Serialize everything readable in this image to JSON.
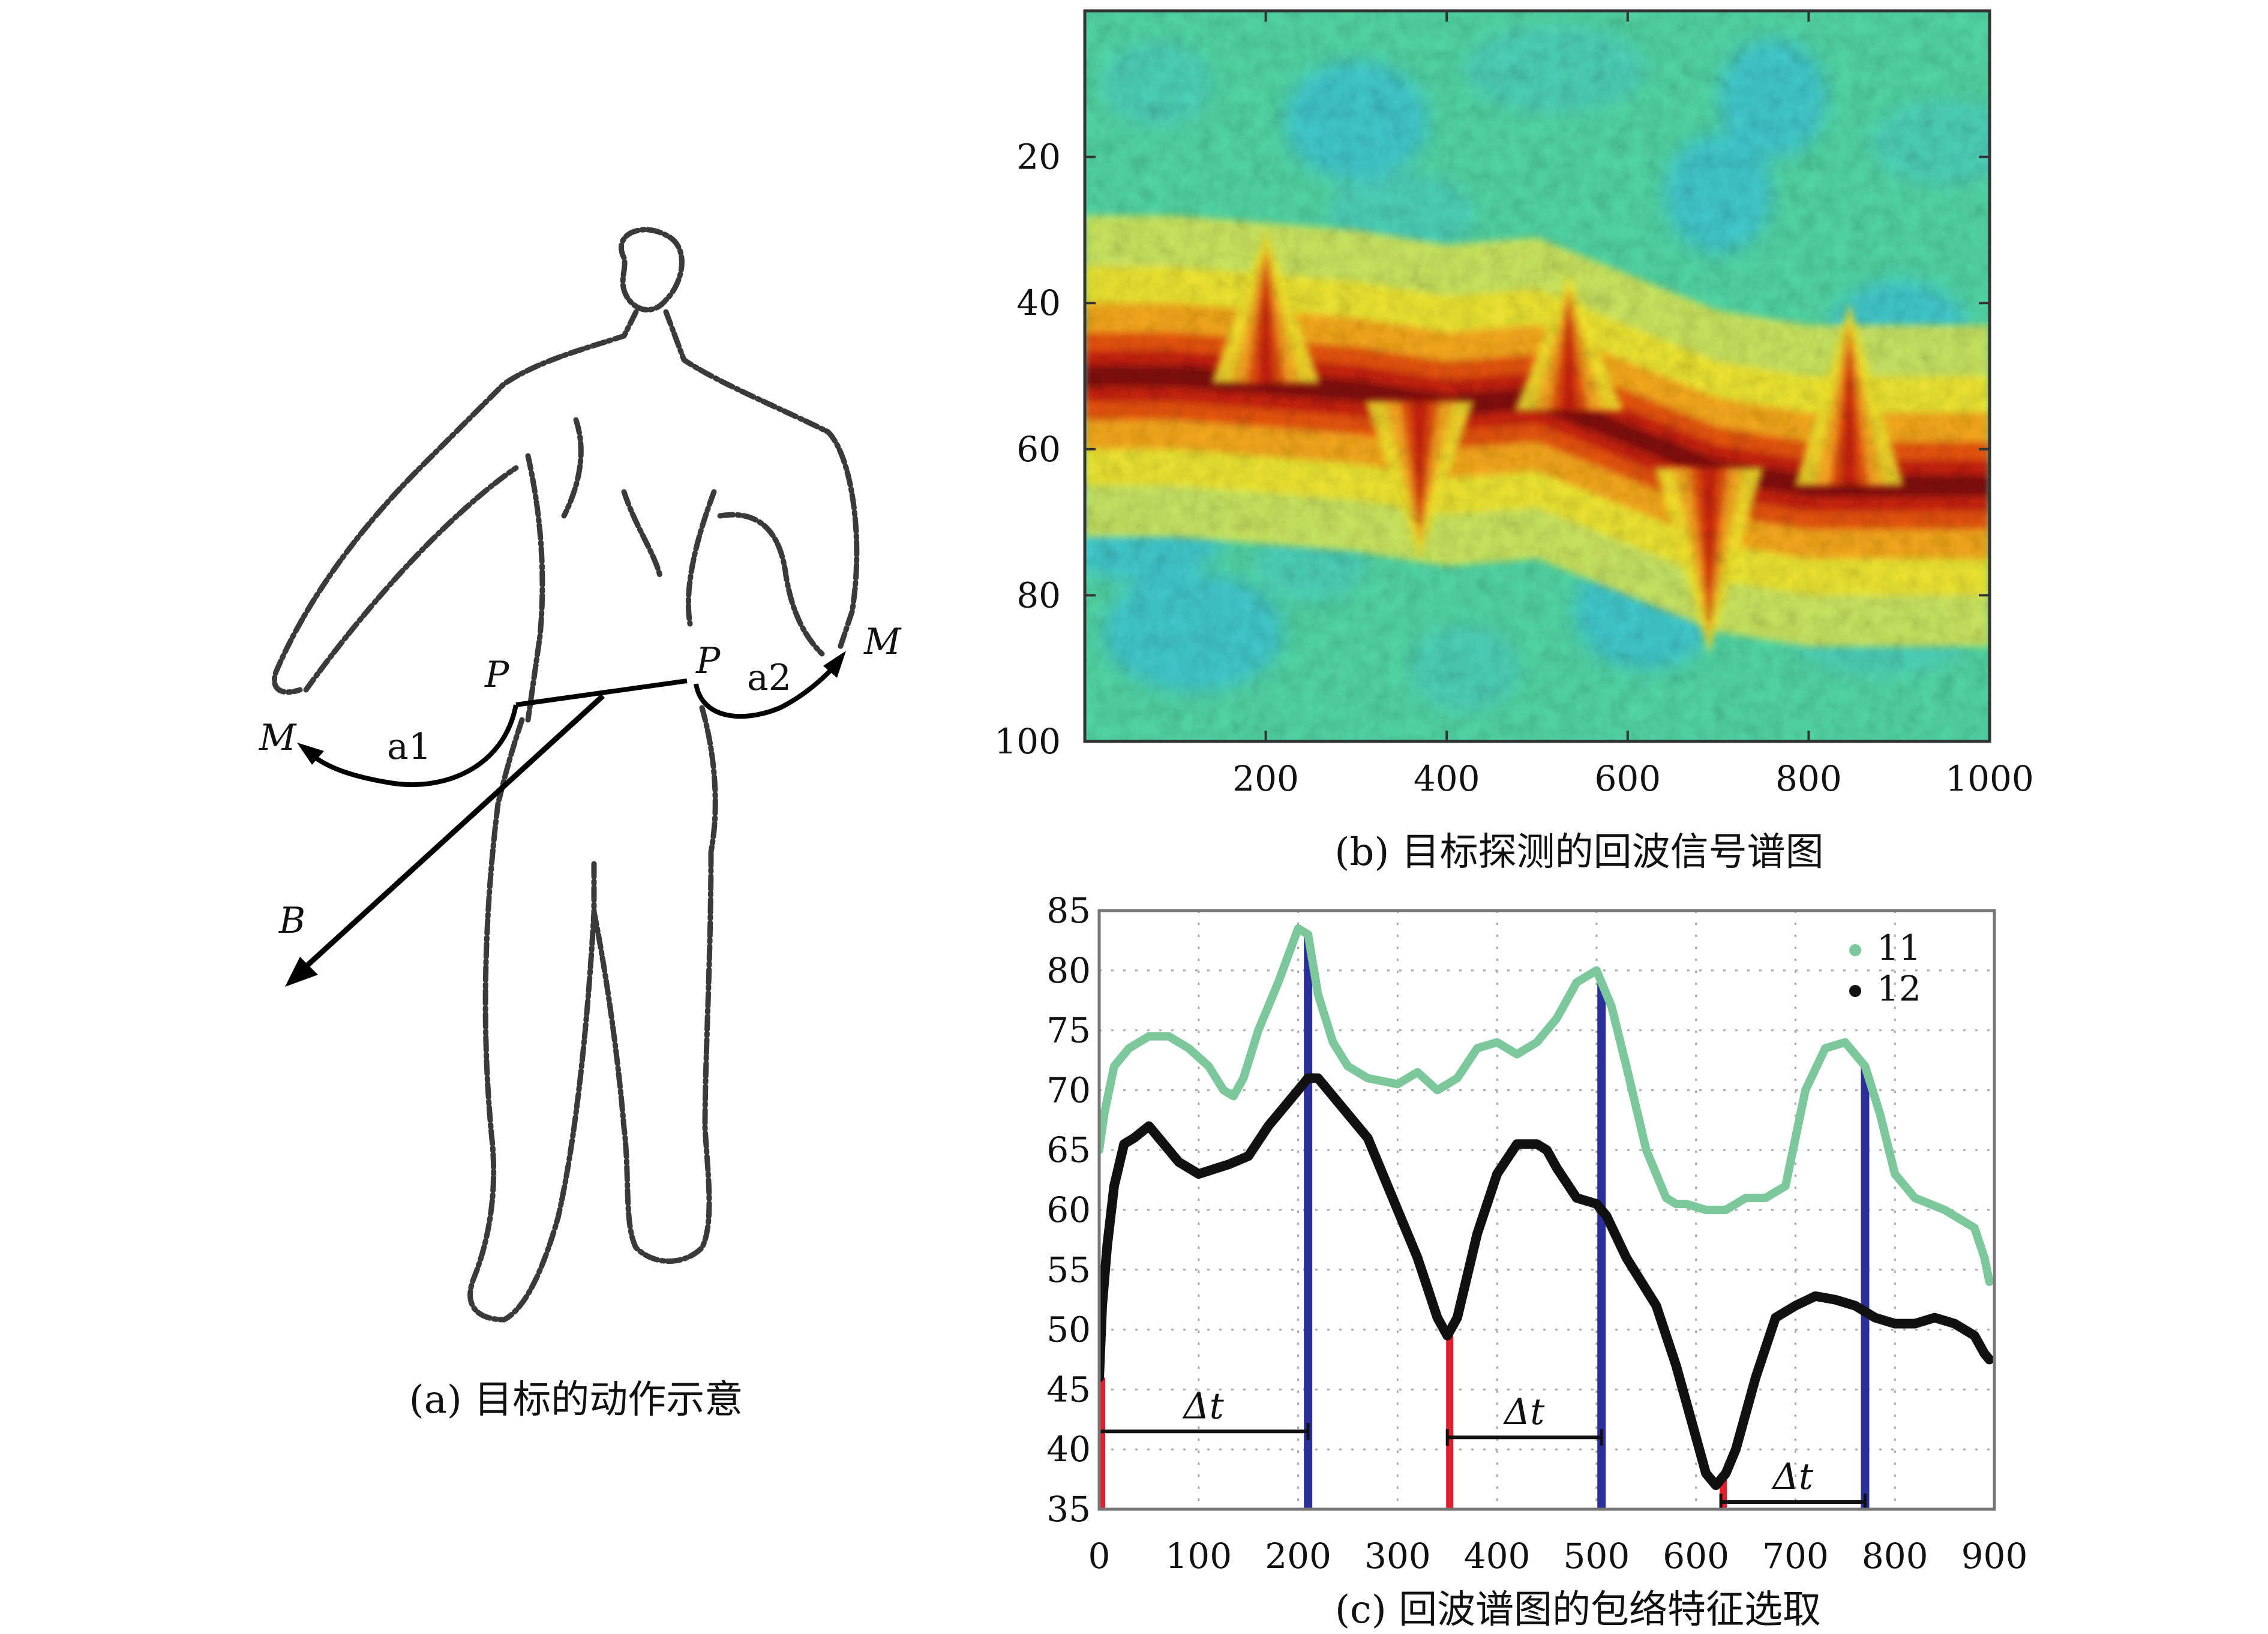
{
  "figure": {
    "panel_a": {
      "caption": "(a) 目标的动作示意",
      "labels": {
        "p_left": "P",
        "p_right": "P",
        "m_left": "M",
        "m_right": "M",
        "a1": "a1",
        "a2": "a2",
        "b": "B"
      }
    },
    "panel_b": {
      "caption": "(b) 目标探测的回波信号谱图"
    },
    "panel_c": {
      "caption": "(c) 回波谱图的包络特征选取",
      "delta_label": "Δt"
    }
  },
  "colors": {
    "series_11": "#7dc89a",
    "series_12": "#111111",
    "red_marker": "#e0202a",
    "blue_marker": "#2a2f9a"
  },
  "chart_data": [
    {
      "type": "heatmap",
      "title": "",
      "xlabel": "",
      "ylabel": "",
      "xlim": [
        0,
        1000
      ],
      "ylim": [
        0,
        100
      ],
      "y_inverted": true,
      "xticks": [
        200,
        400,
        600,
        800,
        1000
      ],
      "yticks": [
        20,
        40,
        60,
        80,
        100
      ],
      "colormap": "jet",
      "ridge": {
        "x": [
          0,
          100,
          200,
          300,
          400,
          500,
          600,
          700,
          800,
          900,
          1000
        ],
        "y": [
          50,
          50,
          51,
          52,
          54,
          53,
          58,
          63,
          65,
          65,
          65
        ]
      },
      "spikes": [
        {
          "x": 200,
          "peak_y": 30
        },
        {
          "x": 370,
          "peak_y": 75
        },
        {
          "x": 535,
          "peak_y": 36
        },
        {
          "x": 690,
          "peak_y": 88
        },
        {
          "x": 845,
          "peak_y": 40
        }
      ]
    },
    {
      "type": "line",
      "title": "",
      "xlabel": "",
      "ylabel": "",
      "xlim": [
        0,
        900
      ],
      "ylim": [
        35,
        85
      ],
      "xticks": [
        0,
        100,
        200,
        300,
        400,
        500,
        600,
        700,
        800,
        900
      ],
      "yticks": [
        35,
        40,
        45,
        50,
        55,
        60,
        65,
        70,
        75,
        80,
        85
      ],
      "grid": true,
      "legend": "top-right",
      "series": [
        {
          "name": "11",
          "x": [
            0,
            5,
            15,
            30,
            50,
            70,
            90,
            110,
            125,
            135,
            145,
            160,
            180,
            200,
            210,
            220,
            235,
            250,
            270,
            300,
            320,
            340,
            360,
            380,
            400,
            420,
            440,
            460,
            480,
            500,
            515,
            530,
            550,
            570,
            580,
            590,
            610,
            630,
            650,
            670,
            690,
            700,
            710,
            730,
            750,
            770,
            785,
            800,
            820,
            850,
            880,
            890,
            895
          ],
          "y": [
            65,
            68,
            72,
            73.5,
            74.5,
            74.5,
            73.5,
            72,
            70,
            69.5,
            71,
            75,
            79,
            83.5,
            83,
            78,
            74,
            72,
            71,
            70.5,
            71.5,
            70,
            71,
            73.5,
            74,
            73,
            74,
            76,
            79,
            80,
            77,
            72,
            65,
            61,
            60.5,
            60.5,
            60,
            60,
            61,
            61,
            62,
            66,
            70,
            73.5,
            74,
            72,
            68,
            63,
            61,
            60,
            58.5,
            56,
            54
          ]
        },
        {
          "name": "12",
          "x": [
            0,
            3,
            8,
            15,
            25,
            35,
            50,
            65,
            80,
            100,
            130,
            150,
            170,
            190,
            210,
            220,
            240,
            270,
            300,
            320,
            340,
            350,
            360,
            380,
            400,
            420,
            440,
            450,
            460,
            480,
            500,
            510,
            530,
            560,
            580,
            600,
            610,
            620,
            630,
            640,
            660,
            680,
            700,
            720,
            740,
            760,
            780,
            800,
            820,
            840,
            860,
            880,
            890,
            895
          ],
          "y": [
            46,
            52,
            57,
            62,
            65.5,
            66,
            67,
            65.5,
            64,
            63,
            63.8,
            64.5,
            67,
            69,
            71,
            71,
            69,
            66,
            60,
            56,
            51,
            49.5,
            51,
            58,
            63,
            65.5,
            65.5,
            65,
            63.5,
            61,
            60.5,
            59.5,
            56,
            52,
            47,
            41,
            38,
            37,
            38,
            40,
            46,
            51,
            52,
            52.8,
            52.5,
            52,
            51,
            50.5,
            50.5,
            51,
            50.5,
            49.5,
            48,
            47.5
          ]
        }
      ],
      "markers": {
        "red_x": [
          0,
          350,
          625
        ],
        "blue_x": [
          210,
          505,
          770
        ]
      },
      "intervals": [
        {
          "x0": 0,
          "x1": 210,
          "y": 41.5,
          "label": "Δt"
        },
        {
          "x0": 350,
          "x1": 505,
          "y": 41,
          "label": "Δt"
        },
        {
          "x0": 625,
          "x1": 770,
          "y": 35.6,
          "label": "Δt"
        }
      ]
    }
  ]
}
